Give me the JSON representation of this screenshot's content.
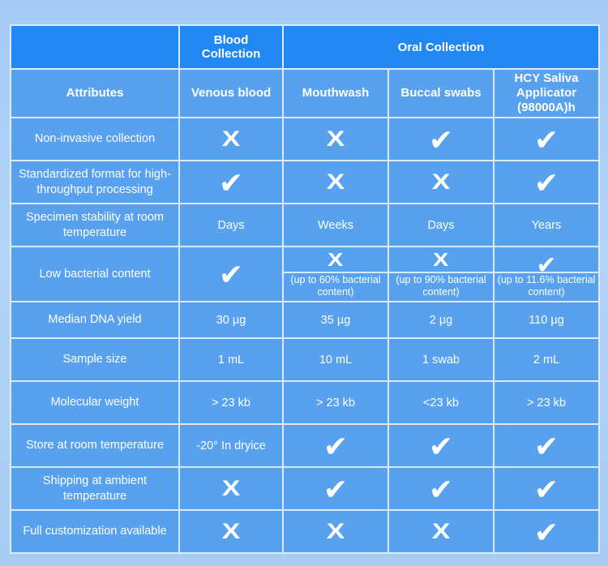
{
  "chart_data": {
    "type": "table",
    "group_header": {
      "attributes_spacer": "",
      "blood": "Blood Collection",
      "oral": "Oral Collection"
    },
    "columns": [
      "Attributes",
      "Venous blood",
      "Mouthwash",
      "Buccal swabs",
      "HCY Saliva Applicator (98000A)h"
    ],
    "rows": [
      {
        "attribute": "Non-invasive collection",
        "cells": [
          {
            "mark": "no"
          },
          {
            "mark": "no"
          },
          {
            "mark": "yes"
          },
          {
            "mark": "yes"
          }
        ]
      },
      {
        "attribute": "Standardized format for high-throughput processing",
        "cells": [
          {
            "mark": "yes"
          },
          {
            "mark": "no"
          },
          {
            "mark": "no"
          },
          {
            "mark": "yes"
          }
        ]
      },
      {
        "attribute": "Specimen stability at room temperature",
        "cells": [
          {
            "text": "Days"
          },
          {
            "text": "Weeks"
          },
          {
            "text": "Days"
          },
          {
            "text": "Years"
          }
        ]
      },
      {
        "attribute": "Low bacterial content",
        "cells": [
          {
            "mark": "yes"
          },
          {
            "mark": "no",
            "sub": "(up to 60% bacterial content)"
          },
          {
            "mark": "no",
            "sub": "(up to 90% bacterial content)"
          },
          {
            "mark": "yes",
            "sub": "(up to 11.6% bacterial content)"
          }
        ]
      },
      {
        "attribute": "Median DNA yield",
        "cells": [
          {
            "text": "30 µg"
          },
          {
            "text": "35 µg"
          },
          {
            "text": "2 µg"
          },
          {
            "text": "110 µg"
          }
        ]
      },
      {
        "attribute": "Sample size",
        "cells": [
          {
            "text": "1 mL"
          },
          {
            "text": "10 mL"
          },
          {
            "text": "1 swab"
          },
          {
            "text": "2 mL"
          }
        ]
      },
      {
        "attribute": "Molecular weight",
        "cells": [
          {
            "text": "> 23 kb"
          },
          {
            "text": "> 23 kb"
          },
          {
            "text": "<23 kb"
          },
          {
            "text": "> 23 kb"
          }
        ]
      },
      {
        "attribute": "Store at room temperature",
        "cells": [
          {
            "text": "-20° In dryice"
          },
          {
            "mark": "yes"
          },
          {
            "mark": "yes"
          },
          {
            "mark": "yes"
          }
        ]
      },
      {
        "attribute": "Shipping at ambient temperature",
        "cells": [
          {
            "mark": "no"
          },
          {
            "mark": "yes"
          },
          {
            "mark": "yes"
          },
          {
            "mark": "yes"
          }
        ]
      },
      {
        "attribute": "Full customization available",
        "cells": [
          {
            "mark": "no"
          },
          {
            "mark": "no"
          },
          {
            "mark": "no"
          },
          {
            "mark": "yes"
          }
        ]
      }
    ],
    "glyphs": {
      "yes": "✔",
      "no": "X"
    },
    "colors": {
      "header_blue": "#2187f3",
      "cell_blue": "#58a1ef",
      "border_light": "#dceafb",
      "page_bg": "#aed0f8",
      "text_white": "#ffffff"
    },
    "legend": {
      "yes_means": "available / true",
      "no_means": "not available / false"
    }
  }
}
